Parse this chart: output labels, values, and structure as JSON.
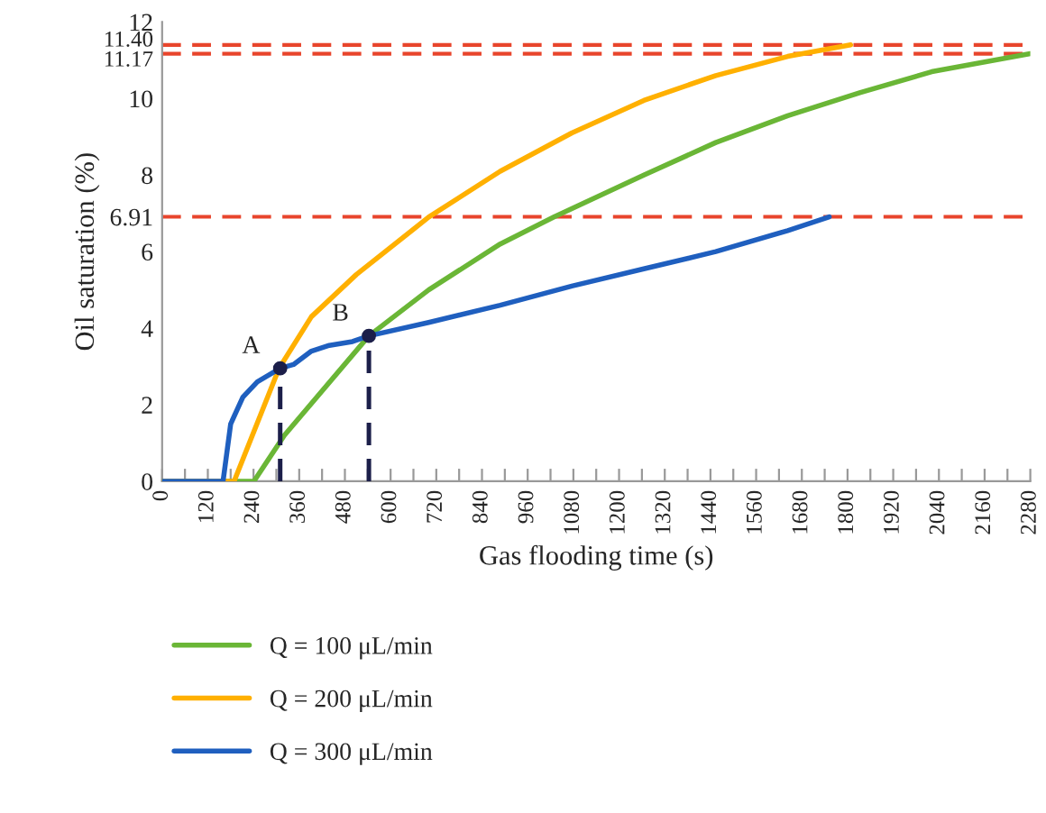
{
  "chart_data": {
    "type": "line",
    "xlabel": "Gas flooding time (s)",
    "ylabel": "Oil saturation (%)",
    "xlim": [
      0,
      2280
    ],
    "ylim": [
      0,
      12
    ],
    "xticks": [
      0,
      {
        "value": 60,
        "label": null
      },
      120,
      {
        "value": 180,
        "label": null
      },
      240,
      {
        "value": 300,
        "label": null
      },
      360,
      {
        "value": 420,
        "label": null
      },
      480,
      {
        "value": 540,
        "label": null
      },
      600,
      {
        "value": 660,
        "label": null
      },
      720,
      {
        "value": 780,
        "label": null
      },
      840,
      {
        "value": 900,
        "label": null
      },
      960,
      {
        "value": 1020,
        "label": null
      },
      1080,
      {
        "value": 1140,
        "label": null
      },
      1200,
      {
        "value": 1260,
        "label": null
      },
      1320,
      {
        "value": 1380,
        "label": null
      },
      1440,
      {
        "value": 1500,
        "label": null
      },
      1560,
      {
        "value": 1620,
        "label": null
      },
      1680,
      {
        "value": 1740,
        "label": null
      },
      1800,
      {
        "value": 1860,
        "label": null
      },
      1920,
      {
        "value": 1980,
        "label": null
      },
      2040,
      {
        "value": 2100,
        "label": null
      },
      2160,
      {
        "value": 2220,
        "label": null
      },
      2280
    ],
    "yticks": [
      0,
      2,
      4,
      6,
      {
        "value": 6.91,
        "label": "6.91"
      },
      8,
      10,
      {
        "value": 11.17,
        "label": "11.17"
      },
      {
        "value": 11.4,
        "label": "11.40"
      },
      12
    ],
    "series": [
      {
        "name": "Q = 100 μL/min",
        "color": "#6ab636",
        "x": [
          0,
          241,
          321,
          543,
          700,
          888,
          1030,
          1265,
          1454,
          1643,
          1832,
          2021,
          2280
        ],
        "values": [
          0,
          0,
          1.2,
          3.8,
          5.0,
          6.2,
          6.91,
          8.0,
          8.85,
          9.55,
          10.15,
          10.7,
          11.17
        ]
      },
      {
        "name": "Q = 200 μL/min",
        "color": "#ffb000",
        "x": [
          0,
          189,
          307,
          392,
          510,
          700,
          888,
          1076,
          1265,
          1454,
          1643,
          1808
        ],
        "values": [
          0,
          0,
          2.95,
          4.3,
          5.4,
          6.9,
          8.1,
          9.1,
          9.95,
          10.6,
          11.1,
          11.4
        ]
      },
      {
        "name": "Q = 300 μL/min",
        "color": "#1f5fbf",
        "x": [
          0,
          160,
          180,
          212,
          250,
          310,
          345,
          392,
          439,
          500,
          543,
          700,
          888,
          1076,
          1265,
          1454,
          1643,
          1752
        ],
        "values": [
          0,
          0,
          1.5,
          2.2,
          2.6,
          2.95,
          3.05,
          3.4,
          3.55,
          3.65,
          3.8,
          4.15,
          4.6,
          5.1,
          5.55,
          6.0,
          6.55,
          6.91
        ]
      },
      {
        "type": "line",
        "line_style": "dashed",
        "color": "#1c1f4a",
        "x": [
          310,
          310
        ],
        "values": [
          0,
          2.95
        ]
      },
      {
        "type": "line",
        "line_style": "dashed",
        "color": "#1c1f4a",
        "x": [
          543,
          543
        ],
        "values": [
          0,
          3.8
        ]
      },
      {
        "type": "scatter",
        "marker": "circle",
        "color": "#1c1f4a",
        "x": [
          310,
          543
        ],
        "values": [
          2.95,
          3.8
        ]
      }
    ],
    "ref_lines": [
      {
        "axis": "y",
        "value": 11.4,
        "color": "#e8452c",
        "line_style": "dashed"
      },
      {
        "axis": "y",
        "value": 11.17,
        "color": "#e8452c",
        "line_style": "dashed"
      },
      {
        "axis": "y",
        "value": 6.91,
        "color": "#e8452c",
        "line_style": "dashed"
      }
    ],
    "annotations": [
      {
        "text": "A",
        "x": 310,
        "y": 2.95
      },
      {
        "text": "B",
        "x": 543,
        "y": 3.8
      }
    ],
    "legend": "bottom",
    "grid": false
  }
}
